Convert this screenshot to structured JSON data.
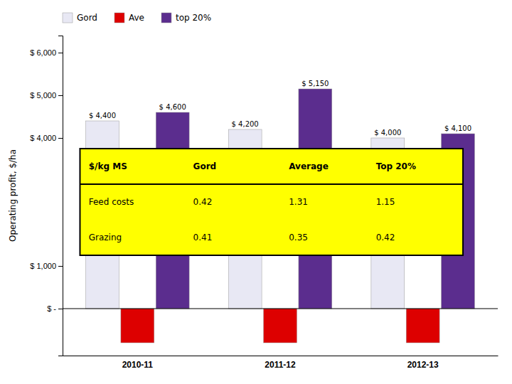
{
  "chart_data": {
    "type": "bar",
    "categories": [
      "2010-11",
      "2011-12",
      "2012-13"
    ],
    "series": [
      {
        "name": "Gord",
        "color": "#e8e8f4",
        "values": [
          4400,
          4200,
          4000
        ],
        "value_labels": [
          "$ 4,400",
          "$ 4,200",
          "$ 4,000"
        ]
      },
      {
        "name": "Ave",
        "color": "#dd0000",
        "values": [
          -800,
          -800,
          -800
        ]
      },
      {
        "name": "top 20%",
        "color": "#5b2d8e",
        "values": [
          4600,
          5150,
          4100
        ],
        "value_labels": [
          "$ 4,600",
          "$ 5,150",
          "$ 4,100"
        ]
      }
    ],
    "ylabel": "Operating profit, $/ha",
    "ylim": [
      -1100,
      6400
    ],
    "yticks": [
      {
        "value": 0,
        "label": "$ -"
      },
      {
        "value": 1000,
        "label": "$ 1,000"
      },
      {
        "value": 4000,
        "label": "$ 4,000"
      },
      {
        "value": 5000,
        "label": "$ 5,000"
      },
      {
        "value": 6000,
        "label": "$ 6,000"
      }
    ],
    "legend": "top-left",
    "data_labels": true,
    "grid": false,
    "table": [
      [
        "$/kg MS",
        "Gord",
        "Average",
        "Top 20%"
      ],
      [
        "Feed costs",
        "0.42",
        "1.31",
        "1.15"
      ],
      [
        "Grazing",
        "0.41",
        "0.35",
        "0.42"
      ]
    ]
  }
}
